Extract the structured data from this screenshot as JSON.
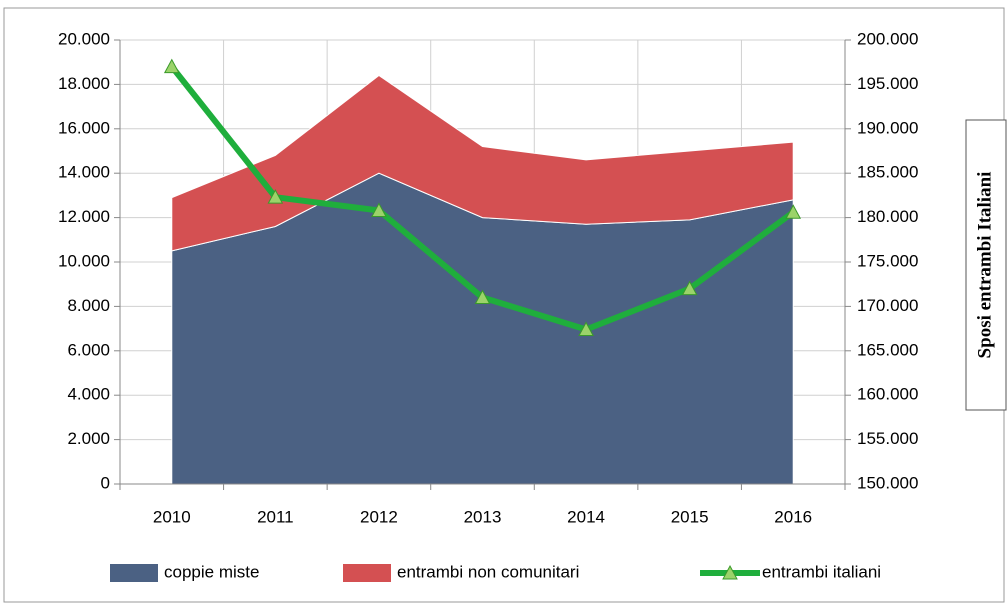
{
  "chart_data": {
    "type": "stacked-area-line",
    "categories": [
      "2010",
      "2011",
      "2012",
      "2013",
      "2014",
      "2015",
      "2016"
    ],
    "series": [
      {
        "name": "coppie miste",
        "color": "#4b6183",
        "values": [
          10500,
          11600,
          14000,
          12000,
          11700,
          11900,
          12800
        ]
      },
      {
        "name": "entrambi non comunitari",
        "color": "#d45052",
        "values": [
          2400,
          3200,
          4400,
          3200,
          2900,
          3100,
          2600
        ]
      },
      {
        "name": "entrambi italiani",
        "color": "#1fae3c",
        "axis": "y2",
        "values": [
          197000,
          182300,
          180800,
          171000,
          167400,
          172000,
          180600
        ]
      }
    ],
    "ylim": [
      0,
      20000
    ],
    "yticks": [
      0,
      {
        "value": 2000,
        "label": "2.000"
      },
      {
        "value": 4000,
        "label": "4.000"
      },
      {
        "value": 6000,
        "label": "6.000"
      },
      {
        "value": 8000,
        "label": "8.000"
      },
      {
        "value": 10000,
        "label": "10.000"
      },
      {
        "value": 12000,
        "label": "12.000"
      },
      {
        "value": 14000,
        "label": "14.000"
      },
      {
        "value": 16000,
        "label": "16.000"
      },
      {
        "value": 18000,
        "label": "18.000"
      },
      {
        "value": 20000,
        "label": "20.000"
      }
    ],
    "y2lim": [
      150000,
      200000
    ],
    "y2ticks": [
      {
        "value": 150000,
        "label": "150.000"
      },
      {
        "value": 155000,
        "label": "155.000"
      },
      {
        "value": 160000,
        "label": "160.000"
      },
      {
        "value": 165000,
        "label": "165.000"
      },
      {
        "value": 170000,
        "label": "170.000"
      },
      {
        "value": 175000,
        "label": "175.000"
      },
      {
        "value": 180000,
        "label": "180.000"
      },
      {
        "value": 185000,
        "label": "185.000"
      },
      {
        "value": 190000,
        "label": "190.000"
      },
      {
        "value": 195000,
        "label": "195.000"
      },
      {
        "value": 200000,
        "label": "200.000"
      }
    ],
    "y2label": "Sposi entrambi Italiani",
    "grid": true,
    "legend": "bottom"
  }
}
